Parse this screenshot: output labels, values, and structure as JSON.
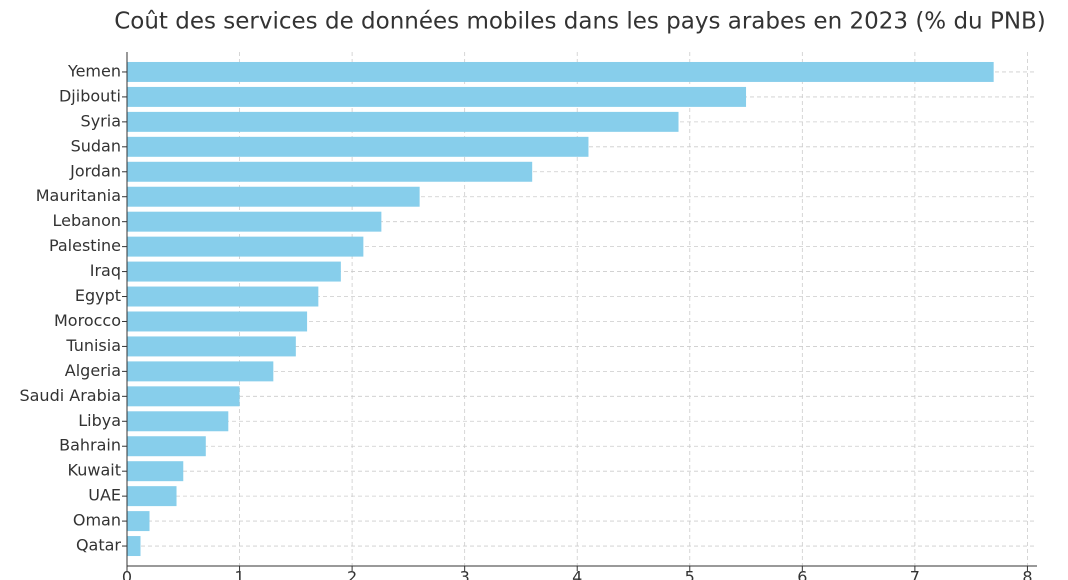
{
  "chart_data": {
    "type": "barh",
    "title": "Coût des services de données mobiles dans les pays arabes en 2023 (% du PNB)",
    "categories": [
      "Yemen",
      "Djibouti",
      "Syria",
      "Sudan",
      "Jordan",
      "Mauritania",
      "Lebanon",
      "Palestine",
      "Iraq",
      "Egypt",
      "Morocco",
      "Tunisia",
      "Algeria",
      "Saudi Arabia",
      "Libya",
      "Bahrain",
      "Kuwait",
      "UAE",
      "Oman",
      "Qatar"
    ],
    "values": [
      7.7,
      5.5,
      4.9,
      4.1,
      3.6,
      2.6,
      2.26,
      2.1,
      1.9,
      1.7,
      1.6,
      1.5,
      1.3,
      1.0,
      0.9,
      0.7,
      0.5,
      0.44,
      0.2,
      0.12
    ],
    "color": "#87ceeb",
    "xlim": [
      0,
      8.085
    ],
    "xticks": [
      0,
      1,
      2,
      3,
      4,
      5,
      6,
      7,
      8
    ],
    "grid": true
  }
}
